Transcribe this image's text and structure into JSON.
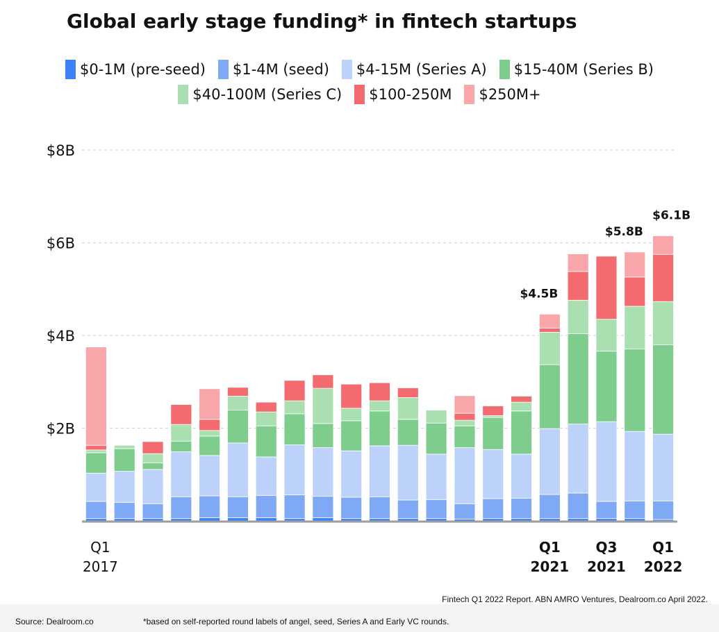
{
  "chart_title": "Global early stage funding* in fintech startups",
  "legend": [
    {
      "label": "$0-1M (pre-seed)",
      "color": "#3b82f6"
    },
    {
      "label": "$1-4M (seed)",
      "color": "#7fa9f5"
    },
    {
      "label": "$4-15M (Series A)",
      "color": "#bdd2fb"
    },
    {
      "label": "$15-40M (Series B)",
      "color": "#7fcd8d"
    },
    {
      "label": "$40-100M (Series C)",
      "color": "#aadfb2"
    },
    {
      "label": "$100-250M",
      "color": "#f46b6f"
    },
    {
      "label": "$250M+",
      "color": "#f8a6a9"
    }
  ],
  "chart_data": {
    "type": "bar",
    "stacked": true,
    "title": "Global early stage funding* in fintech startups",
    "xlabel": "",
    "ylabel": "",
    "ylim": [
      0,
      8
    ],
    "unit": "$B",
    "y_ticks": [
      {
        "value": 2,
        "label": "$2B"
      },
      {
        "value": 4,
        "label": "$4B"
      },
      {
        "value": 6,
        "label": "$6B"
      },
      {
        "value": 8,
        "label": "$8B"
      }
    ],
    "grid": true,
    "categories": [
      "Q1 2017",
      "Q2 2017",
      "Q3 2017",
      "Q4 2017",
      "Q1 2018",
      "Q2 2018",
      "Q3 2018",
      "Q4 2018",
      "Q1 2019",
      "Q2 2019",
      "Q3 2019",
      "Q4 2019",
      "Q1 2020",
      "Q2 2020",
      "Q3 2020",
      "Q4 2020",
      "Q1 2021",
      "Q2 2021",
      "Q3 2021",
      "Q4 2021",
      "Q1 2022"
    ],
    "tick_labels": [
      {
        "index": 0,
        "line1": "Q1",
        "line2": "2017",
        "bold": false
      },
      {
        "index": 16,
        "line1": "Q1",
        "line2": "2021",
        "bold": true
      },
      {
        "index": 18,
        "line1": "Q3",
        "line2": "2021",
        "bold": true
      },
      {
        "index": 20,
        "line1": "Q1",
        "line2": "2022",
        "bold": true
      }
    ],
    "series": [
      {
        "name": "$0-1M (pre-seed)",
        "values": [
          0.05,
          0.05,
          0.05,
          0.05,
          0.07,
          0.07,
          0.07,
          0.05,
          0.07,
          0.05,
          0.05,
          0.05,
          0.05,
          0.04,
          0.05,
          0.05,
          0.05,
          0.05,
          0.05,
          0.05,
          0.03
        ]
      },
      {
        "name": "$1-4M (seed)",
        "values": [
          0.37,
          0.35,
          0.32,
          0.47,
          0.47,
          0.45,
          0.48,
          0.51,
          0.46,
          0.46,
          0.47,
          0.4,
          0.41,
          0.33,
          0.43,
          0.44,
          0.52,
          0.55,
          0.37,
          0.38,
          0.4
        ]
      },
      {
        "name": "$4-15M (Series A)",
        "values": [
          0.61,
          0.67,
          0.74,
          0.97,
          0.87,
          1.16,
          0.83,
          1.08,
          1.05,
          1.0,
          1.1,
          1.18,
          0.98,
          1.21,
          1.06,
          0.95,
          1.42,
          1.49,
          1.72,
          1.5,
          1.44
        ]
      },
      {
        "name": "$15-40M (Series B)",
        "values": [
          0.44,
          0.49,
          0.14,
          0.23,
          0.42,
          0.71,
          0.67,
          0.67,
          0.52,
          0.65,
          0.75,
          0.56,
          0.67,
          0.47,
          0.69,
          0.93,
          1.38,
          1.95,
          1.52,
          1.78,
          1.93
        ]
      },
      {
        "name": "$40-100M (Series C)",
        "values": [
          0.06,
          0.07,
          0.2,
          0.36,
          0.12,
          0.3,
          0.3,
          0.28,
          0.76,
          0.27,
          0.22,
          0.47,
          0.28,
          0.12,
          0.04,
          0.19,
          0.7,
          0.72,
          0.69,
          0.92,
          0.93
        ]
      },
      {
        "name": "$100-250M",
        "values": [
          0.1,
          0.0,
          0.26,
          0.43,
          0.24,
          0.19,
          0.21,
          0.44,
          0.29,
          0.52,
          0.39,
          0.21,
          0.0,
          0.15,
          0.21,
          0.13,
          0.09,
          0.62,
          1.36,
          0.63,
          1.02
        ]
      },
      {
        "name": "$250M+",
        "values": [
          2.12,
          0.0,
          0.0,
          0.0,
          0.66,
          0.0,
          0.0,
          0.0,
          0.0,
          0.0,
          0.0,
          0.0,
          0.0,
          0.38,
          0.0,
          0.0,
          0.3,
          0.38,
          0.0,
          0.54,
          0.4
        ]
      }
    ],
    "annotations": [
      {
        "index": 16,
        "text": "$4.5B"
      },
      {
        "index": 19,
        "text": "$5.8B"
      },
      {
        "index": 20,
        "text": "$6.1B"
      }
    ]
  },
  "report_credit": "Fintech Q1 2022 Report. ABN AMRO Ventures, Dealroom.co April 2022.",
  "source": "Source: Dealroom.co",
  "footnote": "*based on self-reported round labels of angel, seed, Series A and Early VC rounds."
}
